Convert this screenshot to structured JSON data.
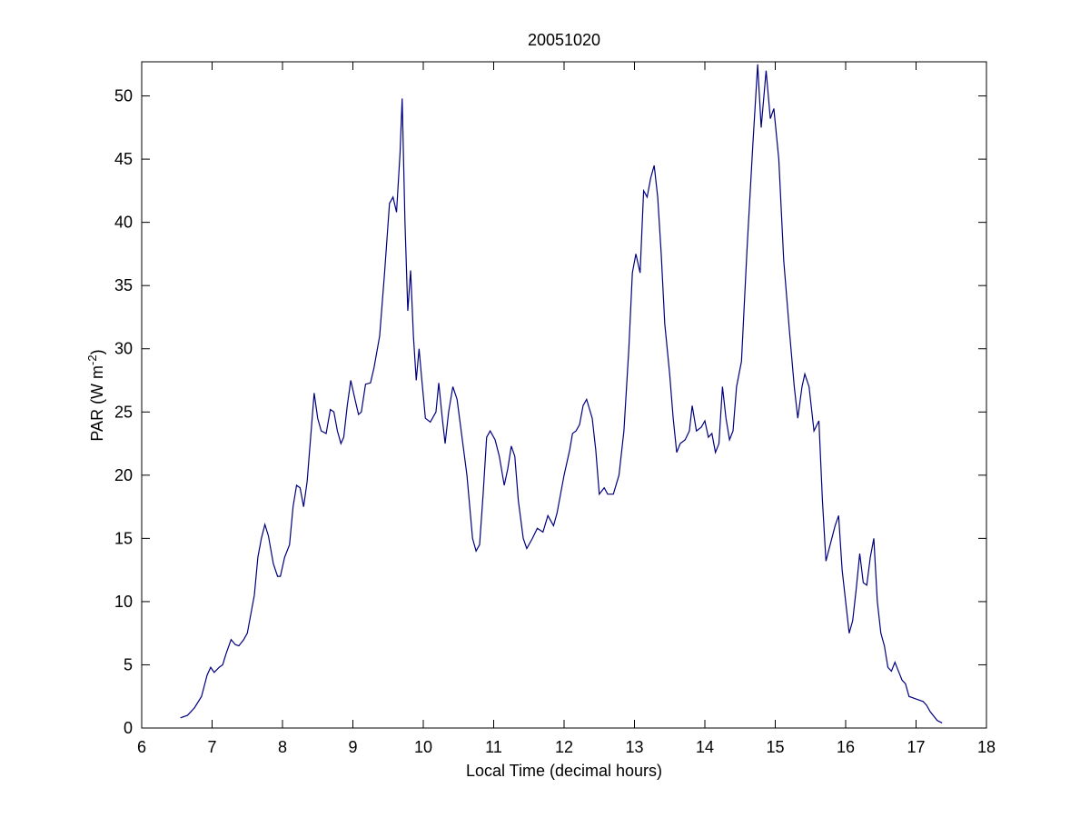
{
  "chart_data": {
    "type": "line",
    "title": "20051020",
    "xlabel": "Local Time (decimal hours)",
    "ylabel": {
      "text": "PAR (W m",
      "superscript": "-2",
      "suffix": ")"
    },
    "color": "#00007f",
    "grid": false,
    "xlim": [
      6,
      18
    ],
    "xticks": [
      6,
      7,
      8,
      9,
      10,
      11,
      12,
      13,
      14,
      15,
      16,
      17,
      18
    ],
    "ylim": [
      0,
      52.7
    ],
    "yticks": [
      0,
      5,
      10,
      15,
      20,
      25,
      30,
      35,
      40,
      45,
      50
    ],
    "x": [
      6.55,
      6.65,
      6.75,
      6.85,
      6.93,
      6.98,
      7.03,
      7.1,
      7.15,
      7.2,
      7.27,
      7.33,
      7.38,
      7.45,
      7.5,
      7.6,
      7.65,
      7.7,
      7.75,
      7.8,
      7.87,
      7.93,
      7.97,
      8.03,
      8.1,
      8.15,
      8.2,
      8.25,
      8.3,
      8.35,
      8.4,
      8.45,
      8.5,
      8.55,
      8.62,
      8.68,
      8.73,
      8.78,
      8.83,
      8.87,
      8.92,
      8.97,
      9.03,
      9.08,
      9.12,
      9.18,
      9.25,
      9.3,
      9.38,
      9.45,
      9.52,
      9.57,
      9.62,
      9.67,
      9.7,
      9.74,
      9.78,
      9.82,
      9.86,
      9.9,
      9.94,
      9.98,
      10.03,
      10.1,
      10.18,
      10.22,
      10.27,
      10.31,
      10.36,
      10.42,
      10.48,
      10.55,
      10.62,
      10.7,
      10.75,
      10.8,
      10.85,
      10.9,
      10.95,
      11.02,
      11.08,
      11.15,
      11.2,
      11.25,
      11.3,
      11.35,
      11.42,
      11.47,
      11.55,
      11.62,
      11.7,
      11.77,
      11.85,
      11.9,
      12.0,
      12.08,
      12.12,
      12.17,
      12.22,
      12.27,
      12.32,
      12.4,
      12.45,
      12.5,
      12.57,
      12.62,
      12.7,
      12.78,
      12.85,
      12.92,
      12.97,
      13.02,
      13.08,
      13.13,
      13.18,
      13.23,
      13.28,
      13.33,
      13.38,
      13.43,
      13.5,
      13.55,
      13.6,
      13.65,
      13.72,
      13.78,
      13.82,
      13.88,
      13.95,
      14.0,
      14.05,
      14.1,
      14.15,
      14.2,
      14.25,
      14.3,
      14.35,
      14.4,
      14.45,
      14.52,
      14.6,
      14.68,
      14.75,
      14.8,
      14.87,
      14.93,
      14.98,
      15.05,
      15.12,
      15.2,
      15.27,
      15.32,
      15.38,
      15.42,
      15.48,
      15.55,
      15.62,
      15.67,
      15.72,
      15.78,
      15.85,
      15.9,
      15.95,
      16.0,
      16.05,
      16.1,
      16.15,
      16.2,
      16.25,
      16.3,
      16.35,
      16.4,
      16.45,
      16.5,
      16.55,
      16.6,
      16.65,
      16.7,
      16.75,
      16.8,
      16.85,
      16.9,
      17.0,
      17.1,
      17.15,
      17.2,
      17.3,
      17.37
    ],
    "values": [
      0.8,
      1.0,
      1.6,
      2.5,
      4.2,
      4.8,
      4.4,
      4.8,
      5.0,
      5.9,
      7.0,
      6.6,
      6.5,
      7.0,
      7.5,
      10.5,
      13.5,
      15.0,
      16.1,
      15.2,
      13.0,
      12.0,
      12.0,
      13.5,
      14.5,
      17.5,
      19.2,
      19.0,
      17.5,
      19.5,
      23.0,
      26.5,
      24.5,
      23.5,
      23.3,
      25.2,
      25.0,
      23.5,
      22.5,
      23.0,
      25.5,
      27.5,
      26.0,
      24.8,
      25.0,
      27.2,
      27.3,
      28.5,
      31.0,
      36.0,
      41.5,
      42.0,
      40.8,
      45.5,
      49.8,
      40.0,
      33.0,
      36.2,
      31.0,
      27.5,
      30.0,
      27.5,
      24.5,
      24.2,
      25.0,
      27.3,
      24.5,
      22.5,
      25.0,
      27.0,
      26.0,
      23.0,
      20.0,
      15.0,
      14.0,
      14.5,
      18.5,
      23.0,
      23.5,
      22.8,
      21.5,
      19.2,
      20.5,
      22.3,
      21.5,
      18.0,
      15.0,
      14.2,
      15.0,
      15.8,
      15.5,
      16.8,
      16.0,
      17.0,
      20.0,
      22.0,
      23.3,
      23.5,
      24.0,
      25.5,
      26.0,
      24.5,
      22.0,
      18.5,
      19.0,
      18.5,
      18.5,
      20.0,
      23.5,
      30.0,
      36.0,
      37.5,
      36.0,
      42.5,
      42.0,
      43.5,
      44.5,
      42.0,
      37.5,
      32.0,
      28.0,
      24.5,
      21.8,
      22.5,
      22.8,
      23.5,
      25.5,
      23.5,
      23.8,
      24.3,
      23.0,
      23.3,
      21.8,
      22.5,
      27.0,
      24.5,
      22.8,
      23.5,
      27.0,
      29.0,
      38.0,
      46.0,
      52.5,
      47.5,
      52.0,
      48.2,
      49.0,
      45.0,
      37.0,
      31.5,
      27.0,
      24.5,
      27.0,
      28.0,
      27.0,
      23.5,
      24.3,
      18.0,
      13.2,
      14.5,
      16.0,
      16.8,
      12.5,
      10.0,
      7.5,
      8.5,
      11.0,
      13.8,
      11.5,
      11.3,
      13.5,
      15.0,
      10.0,
      7.5,
      6.5,
      4.8,
      4.5,
      5.2,
      4.5,
      3.8,
      3.5,
      2.5,
      2.3,
      2.1,
      1.8,
      1.3,
      0.6,
      0.4
    ]
  }
}
